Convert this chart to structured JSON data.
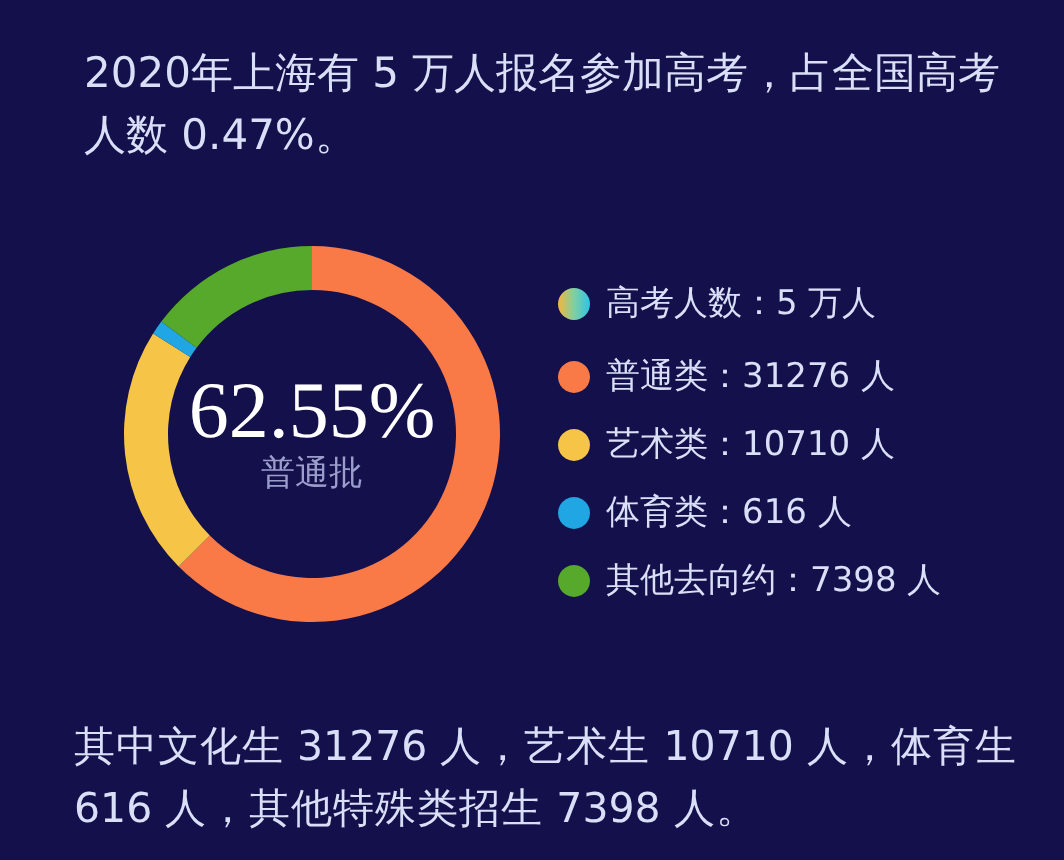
{
  "chart_data": {
    "type": "donut",
    "title": "2020年上海有 5 万人报名参加高考，占全国高考人数 0.47%。",
    "legend_title": "高考人数：5 万人",
    "categories": [
      "普通类：31276 人",
      "艺术类：10710 人",
      "体育类：616 人",
      "其他去向约：7398 人"
    ],
    "values": [
      31276,
      10710,
      616,
      7398
    ],
    "colors": [
      "#f97a47",
      "#f6c447",
      "#1fa6e3",
      "#56a92a"
    ],
    "legend": "right",
    "annotations": [
      "62.55%",
      "普通批",
      "其中文化生 31276 人，艺术生 10710 人，体育生 616 人，其他特殊类招生 7398 人。"
    ]
  }
}
